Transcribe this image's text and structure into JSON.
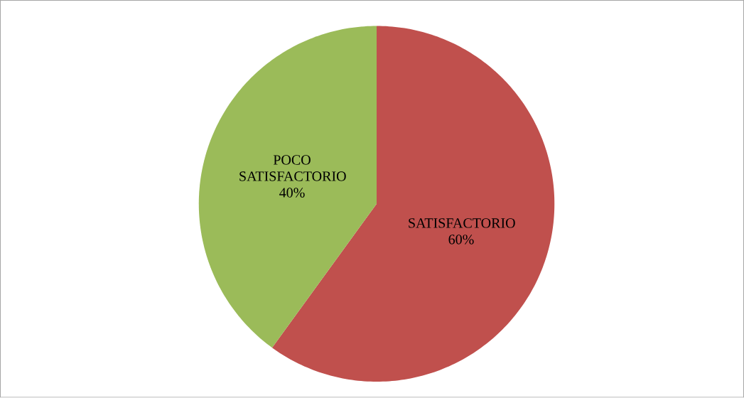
{
  "chart_data": {
    "type": "pie",
    "categories": [
      "SATISFACTORIO",
      "POCO SATISFACTORIO"
    ],
    "values": [
      60,
      40
    ],
    "colors": [
      "#c0504d",
      "#9bbb59"
    ],
    "value_labels": [
      "60%",
      "40%"
    ]
  }
}
